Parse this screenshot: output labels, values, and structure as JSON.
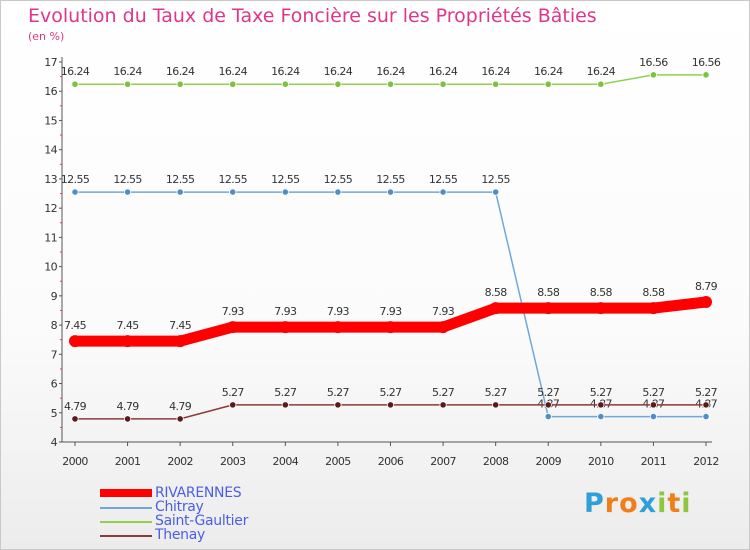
{
  "chart_data": {
    "type": "line",
    "title": "Evolution du Taux de Taxe Foncière sur les Propriétés Bâties",
    "unit_label": "(en %)",
    "xlabel": "",
    "ylabel": "",
    "x": [
      "2000",
      "2001",
      "2002",
      "2003",
      "2004",
      "2005",
      "2006",
      "2007",
      "2008",
      "2009",
      "2010",
      "2011",
      "2012"
    ],
    "ylim": [
      4,
      17
    ],
    "yticks": [
      "4",
      "5",
      "6",
      "7",
      "8",
      "9",
      "10",
      "11",
      "12",
      "13",
      "14",
      "15",
      "16",
      "17"
    ],
    "grid": false,
    "series": [
      {
        "name": "Saint-Gaultier",
        "color": "#8fd14f",
        "marker": "#7cc23f",
        "values": [
          16.24,
          16.24,
          16.24,
          16.24,
          16.24,
          16.24,
          16.24,
          16.24,
          16.24,
          16.24,
          16.24,
          16.56,
          16.56
        ],
        "labels": [
          "16.24",
          "16.24",
          "16.24",
          "16.24",
          "16.24",
          "16.24",
          "16.24",
          "16.24",
          "16.24",
          "16.24",
          "16.24",
          "16.56",
          "16.56"
        ]
      },
      {
        "name": "Chitray",
        "color": "#6fa8d8",
        "marker": "#4f8fc8",
        "values": [
          12.55,
          12.55,
          12.55,
          12.55,
          12.55,
          12.55,
          12.55,
          12.55,
          12.55,
          4.87,
          4.87,
          4.87,
          4.87
        ],
        "labels": [
          "12.55",
          "12.55",
          "12.55",
          "12.55",
          "12.55",
          "12.55",
          "12.55",
          "12.55",
          "12.55",
          "4.87",
          "4.87",
          "4.87",
          "4.87"
        ]
      },
      {
        "name": "RIVARENNES",
        "color": "#ff0000",
        "marker": "#ff0000",
        "values": [
          7.45,
          7.45,
          7.45,
          7.93,
          7.93,
          7.93,
          7.93,
          7.93,
          8.58,
          8.58,
          8.58,
          8.58,
          8.79
        ],
        "labels": [
          "7.45",
          "7.45",
          "7.45",
          "7.93",
          "7.93",
          "7.93",
          "7.93",
          "7.93",
          "8.58",
          "8.58",
          "8.58",
          "8.58",
          "8.79"
        ]
      },
      {
        "name": "Thenay",
        "color": "#8b3a3a",
        "marker": "#5a1a1a",
        "values": [
          4.79,
          4.79,
          4.79,
          5.27,
          5.27,
          5.27,
          5.27,
          5.27,
          5.27,
          5.27,
          5.27,
          5.27,
          5.27
        ],
        "labels": [
          "4.79",
          "4.79",
          "4.79",
          "5.27",
          "5.27",
          "5.27",
          "5.27",
          "5.27",
          "5.27",
          "5.27",
          "5.27",
          "5.27",
          "5.27"
        ]
      }
    ],
    "legend": [
      "RIVARENNES",
      "Chitray",
      "Saint-Gaultier",
      "Thenay"
    ],
    "legend_position": "bottom-left"
  },
  "brand": {
    "letters": [
      "P",
      "r",
      "o",
      "x",
      "i",
      "t",
      "i"
    ],
    "colors": [
      "#2f9fd8",
      "#f07f1a",
      "#f07f1a",
      "#2f9fd8",
      "#8fc63f",
      "#f07f1a",
      "#8fc63f"
    ]
  }
}
